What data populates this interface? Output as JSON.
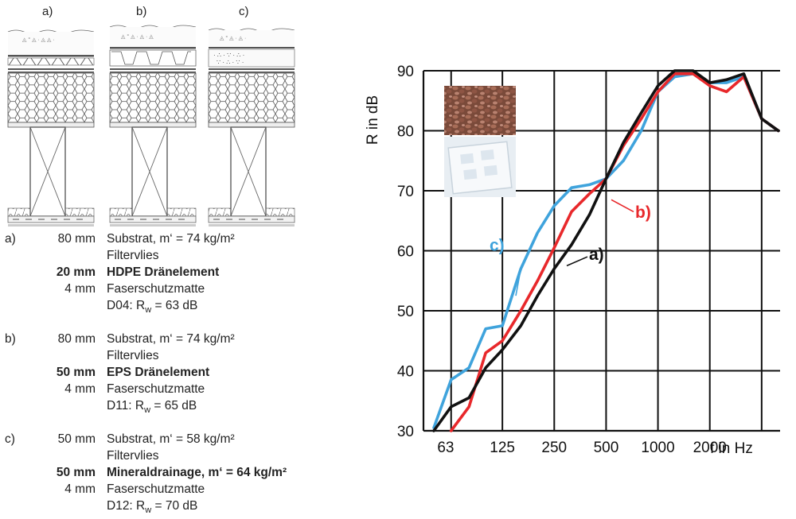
{
  "sections": {
    "labels": [
      "a)",
      "b)",
      "c)"
    ]
  },
  "specs": [
    {
      "letter": "a)",
      "rows": [
        {
          "thickness": "80 mm",
          "text": "Substrat, m‘ = 74 kg/m²",
          "bold": false
        },
        {
          "thickness": "",
          "text": "Filtervlies",
          "bold": false
        },
        {
          "thickness": "20 mm",
          "text": "HDPE Dränelement",
          "bold": true
        },
        {
          "thickness": "4 mm",
          "text": "Faserschutzmatte",
          "bold": false
        },
        {
          "thickness": "",
          "text": "D04: Rw = 63 dB",
          "bold": false
        }
      ]
    },
    {
      "letter": "b)",
      "rows": [
        {
          "thickness": "80 mm",
          "text": "Substrat, m‘ = 74 kg/m²",
          "bold": false
        },
        {
          "thickness": "",
          "text": "Filtervlies",
          "bold": false
        },
        {
          "thickness": "50 mm",
          "text": "EPS Dränelement",
          "bold": true
        },
        {
          "thickness": "4 mm",
          "text": "Faserschutzmatte",
          "bold": false
        },
        {
          "thickness": "",
          "text": "D11: Rw = 65 dB",
          "bold": false
        }
      ]
    },
    {
      "letter": "c)",
      "rows": [
        {
          "thickness": "50 mm",
          "text": "Substrat, m‘ = 58 kg/m²",
          "bold": false
        },
        {
          "thickness": "",
          "text": "Filtervlies",
          "bold": false
        },
        {
          "thickness": "50 mm",
          "text": "Mineraldrainage, m‘ = 64 kg/m²",
          "bold": true
        },
        {
          "thickness": "4 mm",
          "text": "Faserschutzmatte",
          "bold": false
        },
        {
          "thickness": "",
          "text": "D12: Rw = 70 dB",
          "bold": false
        }
      ]
    }
  ],
  "chart_data": {
    "type": "line",
    "xlabel": "f in Hz",
    "ylabel": "R in dB",
    "ylim": [
      30,
      90
    ],
    "yticks": [
      30,
      40,
      50,
      60,
      70,
      80,
      90
    ],
    "xtick_labels": [
      "63",
      "125",
      "250",
      "500",
      "1000",
      "2000"
    ],
    "x_scale": "log (third-octave bands)",
    "grid": true,
    "colors": {
      "a)": "#111111",
      "b)": "#e8282b",
      "c)": "#3fa3dc"
    },
    "series": [
      {
        "name": "a)",
        "x": [
          50,
          63,
          80,
          100,
          125,
          160,
          200,
          250,
          315,
          400,
          500,
          630,
          800,
          1000,
          1250,
          1600,
          2000,
          2500,
          3150,
          4000,
          5000
        ],
        "values": [
          30,
          34,
          35.5,
          40.5,
          43.5,
          47.5,
          52.5,
          57,
          61,
          66,
          72,
          78,
          83,
          87.5,
          90,
          90,
          88,
          88.5,
          89.5,
          82,
          80
        ]
      },
      {
        "name": "b)",
        "x": [
          63,
          80,
          100,
          125,
          160,
          200,
          250,
          315,
          400,
          500,
          630,
          800,
          1000,
          1250,
          1600,
          2000,
          2500,
          3150,
          4000,
          5000
        ],
        "values": [
          30,
          34,
          43,
          45,
          50,
          55,
          60.5,
          66.5,
          69.5,
          72,
          77.5,
          82,
          86.5,
          89.5,
          89.5,
          87.5,
          86.5,
          89,
          82,
          80
        ]
      },
      {
        "name": "c)",
        "x": [
          50,
          63,
          80,
          100,
          125,
          160,
          200,
          250,
          315,
          400,
          500,
          630,
          800,
          1000,
          1250,
          1600,
          2000,
          2500,
          3150,
          4000,
          5000
        ],
        "values": [
          30.5,
          38.5,
          40.5,
          47,
          47.5,
          57,
          63,
          67.5,
          70.5,
          71,
          72,
          75,
          80,
          86.5,
          89,
          89.5,
          88,
          88,
          89,
          82,
          80
        ]
      }
    ],
    "annotations": [
      {
        "text": "a)",
        "color": "#111111"
      },
      {
        "text": "b)",
        "color": "#e8282b"
      },
      {
        "text": "c)",
        "color": "#3fa3dc"
      }
    ]
  }
}
